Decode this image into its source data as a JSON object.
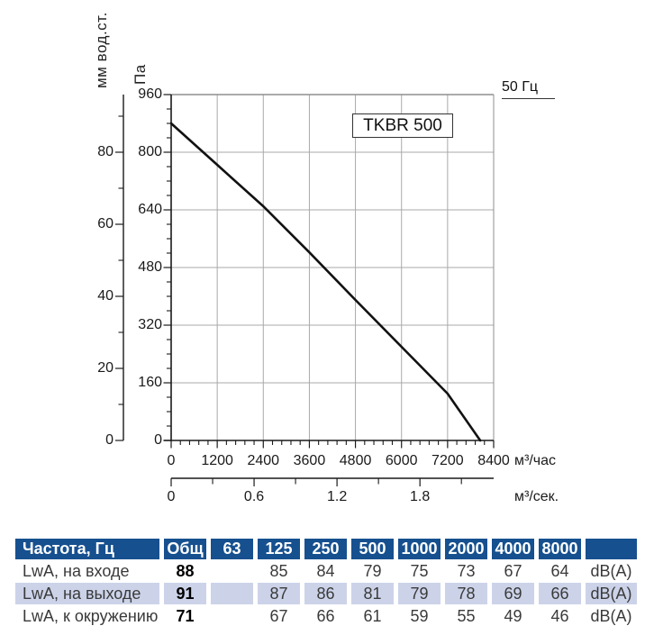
{
  "chart_data": {
    "type": "line",
    "title": "TKBR 500",
    "annotation": "50 Гц",
    "x": [
      0,
      1200,
      2400,
      3600,
      4800,
      6000,
      7200,
      8050
    ],
    "series": [
      {
        "name": "TKBR 500, 50 Гц",
        "pressure_pa": [
          880,
          765,
          650,
          522,
          390,
          260,
          130,
          0
        ]
      }
    ],
    "x_axis": {
      "label": "м³/час",
      "ticks": [
        0,
        1200,
        2400,
        3600,
        4800,
        6000,
        7200,
        8400
      ],
      "minor_step": 240,
      "range": [
        0,
        8400
      ]
    },
    "x_axis_secondary": {
      "label": "м³/сек.",
      "tick_labels": [
        "0",
        "0.6",
        "1.2",
        "1.8"
      ],
      "tick_values": [
        0,
        0.6,
        1.2,
        1.8
      ],
      "minor_values": [
        0.3,
        0.9,
        1.5,
        2.1
      ]
    },
    "y_axis": {
      "label": "Па",
      "ticks": [
        0,
        160,
        320,
        480,
        640,
        800,
        960
      ],
      "minor_step": 40,
      "range": [
        0,
        960
      ]
    },
    "y_axis_secondary": {
      "label": "мм вод.ст.",
      "ticks": [
        0,
        20,
        40,
        60,
        80
      ],
      "minor_ticks": [
        10,
        30,
        50,
        70,
        90
      ],
      "pa_per_unit": 10
    },
    "grid": true,
    "colors": {
      "grid": "#a9a9a9",
      "axis": "#1a1a1a",
      "curve": "#111111",
      "frame": "#8f8f8f"
    }
  },
  "table": {
    "header": [
      "Частота, Гц",
      "Общ",
      "63",
      "125",
      "250",
      "500",
      "1000",
      "2000",
      "4000",
      "8000",
      ""
    ],
    "rows": [
      {
        "label": "LwA, на входе",
        "total": "88",
        "values": [
          "",
          "85",
          "84",
          "79",
          "75",
          "73",
          "67",
          "64"
        ],
        "unit": "dB(A)",
        "highlight": false
      },
      {
        "label": "LwA, на выходе",
        "total": "91",
        "values": [
          "",
          "87",
          "86",
          "81",
          "79",
          "78",
          "69",
          "66"
        ],
        "unit": "dB(A)",
        "highlight": true
      },
      {
        "label": "LwA, к окружению",
        "total": "71",
        "values": [
          "",
          "67",
          "66",
          "61",
          "59",
          "55",
          "49",
          "46"
        ],
        "unit": "dB(A)",
        "highlight": false
      }
    ],
    "colors": {
      "header_bg": "#16508f",
      "header_text": "#ffffff",
      "highlight_bg": "#ccd3e9",
      "text": "#3a3a3a"
    }
  }
}
